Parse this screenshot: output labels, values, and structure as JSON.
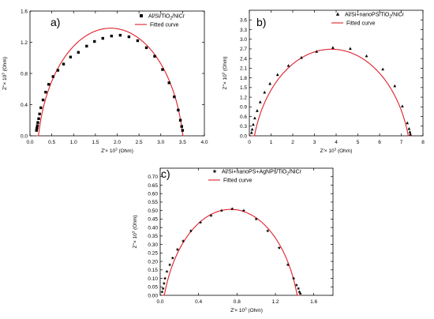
{
  "chart_data": [
    {
      "type": "scatter",
      "panel_label": "a)",
      "xlabel_main": "Z'× 10",
      "xlabel_exp": "3",
      "xlabel_unit": " (Ohm)",
      "ylabel_main": "Z''× 10",
      "ylabel_exp": "3",
      "ylabel_unit": " (Ohm)",
      "xlim": [
        0.0,
        4.0
      ],
      "ylim": [
        0.0,
        1.6
      ],
      "xticks": [
        0.0,
        0.5,
        1.0,
        1.5,
        2.0,
        2.5,
        3.0,
        3.5,
        4.0
      ],
      "xtick_labels": [
        "0.0",
        "0.5",
        "1.0",
        "1.5",
        "2.0",
        "2.5",
        "3.0",
        "3.5",
        "4.0"
      ],
      "yticks": [
        0.0,
        0.4,
        0.8,
        1.2,
        1.6
      ],
      "ytick_labels": [
        "0.0",
        "0.4",
        "0.8",
        "1.2",
        "1.6"
      ],
      "legend_position": "top-right",
      "marker": "square",
      "series": [
        {
          "name": "Al/Si/TiO",
          "name_sub": "2",
          "name_tail": "/NiCr",
          "kind": "markers",
          "x": [
            0.15,
            0.16,
            0.17,
            0.18,
            0.2,
            0.22,
            0.25,
            0.3,
            0.36,
            0.43,
            0.53,
            0.64,
            0.77,
            0.93,
            1.11,
            1.3,
            1.48,
            1.67,
            1.87,
            2.07,
            2.27,
            2.47,
            2.67,
            2.86,
            3.04,
            3.19,
            3.31,
            3.4,
            3.45,
            3.48,
            3.5
          ],
          "y": [
            0.07,
            0.1,
            0.13,
            0.17,
            0.22,
            0.28,
            0.36,
            0.46,
            0.56,
            0.66,
            0.76,
            0.84,
            0.92,
            1.01,
            1.07,
            1.15,
            1.21,
            1.25,
            1.28,
            1.29,
            1.27,
            1.22,
            1.13,
            1.02,
            0.85,
            0.68,
            0.5,
            0.33,
            0.2,
            0.12,
            0.07
          ]
        },
        {
          "name": "Fitted curve",
          "kind": "line",
          "color": "#e0202a",
          "center": 1.85,
          "radius": 1.68,
          "depression": 0.3,
          "x_from": 0.15,
          "x_to": 3.53
        }
      ]
    },
    {
      "type": "scatter",
      "panel_label": "b)",
      "xlabel_main": "Z'× 10",
      "xlabel_exp": "3",
      "xlabel_unit": " (Ohm)",
      "ylabel_main": "Z''× 10",
      "ylabel_exp": "3",
      "ylabel_unit": " (Ohm)",
      "xlim": [
        0,
        8
      ],
      "ylim": [
        0.0,
        3.9
      ],
      "xticks": [
        0,
        1,
        2,
        3,
        4,
        5,
        6,
        7,
        8
      ],
      "xtick_labels": [
        "0",
        "1",
        "2",
        "3",
        "4",
        "5",
        "6",
        "7",
        "8"
      ],
      "yticks": [
        0.0,
        0.3,
        0.6,
        0.9,
        1.2,
        1.5,
        1.8,
        2.1,
        2.4,
        2.7,
        3.0,
        3.3,
        3.6
      ],
      "ytick_labels": [
        "0.0",
        "0.3",
        "0.6",
        "0.9",
        "1.2",
        "1.5",
        "1.8",
        "2.1",
        "2.4",
        "2.7",
        "3.0",
        "3.3",
        "3.6"
      ],
      "legend_position": "top-right",
      "marker": "triangle",
      "series": [
        {
          "name": "Al/Si+nanoPS/TiO",
          "name_sub": "2",
          "name_tail": "/NiCr",
          "kind": "markers",
          "x": [
            0.1,
            0.13,
            0.18,
            0.25,
            0.36,
            0.5,
            0.7,
            0.95,
            1.3,
            1.8,
            2.4,
            3.1,
            3.85,
            4.65,
            5.4,
            6.15,
            6.7,
            7.05,
            7.28,
            7.36,
            7.4,
            7.42
          ],
          "y": [
            0.1,
            0.2,
            0.35,
            0.55,
            0.78,
            1.05,
            1.35,
            1.62,
            1.9,
            2.18,
            2.43,
            2.62,
            2.74,
            2.71,
            2.48,
            2.07,
            1.55,
            0.92,
            0.4,
            0.22,
            0.12,
            0.05
          ]
        },
        {
          "name": "Fitted curve",
          "kind": "line",
          "color": "#e0202a",
          "center": 3.78,
          "radius": 3.68,
          "depression": 0.99,
          "x_from": 0.1,
          "x_to": 7.46
        }
      ]
    },
    {
      "type": "scatter",
      "panel_label": "c)",
      "xlabel_main": "Z'× 10",
      "xlabel_exp": "3",
      "xlabel_unit": " (Ohm)",
      "ylabel_main": "Z''× 10",
      "ylabel_exp": "3",
      "ylabel_unit": " (Ohm)",
      "xlim": [
        0.0,
        1.8
      ],
      "ylim": [
        0.0,
        0.75
      ],
      "xticks": [
        0.0,
        0.4,
        0.8,
        1.2,
        1.6
      ],
      "xtick_labels": [
        "0.0",
        "0.4",
        "0.8",
        "1.2",
        "1.6"
      ],
      "yticks": [
        0.0,
        0.05,
        0.1,
        0.15,
        0.2,
        0.25,
        0.3,
        0.35,
        0.4,
        0.45,
        0.5,
        0.55,
        0.6,
        0.65,
        0.7
      ],
      "ytick_labels": [
        "0.00",
        "0.05",
        "0.10",
        "0.15",
        "0.20",
        "0.25",
        "0.30",
        "0.35",
        "0.40",
        "0.45",
        "0.50",
        "0.55",
        "0.60",
        "0.65",
        "0.70"
      ],
      "legend_position": "top-right",
      "marker": "star",
      "series": [
        {
          "name": "Al/Si+nanoPS+AgNPs/TiO",
          "name_sub": "2",
          "name_tail": "/NiCr",
          "kind": "markers",
          "x": [
            0.02,
            0.03,
            0.04,
            0.05,
            0.07,
            0.1,
            0.13,
            0.18,
            0.24,
            0.32,
            0.42,
            0.53,
            0.64,
            0.75,
            0.87,
            1.0,
            1.12,
            1.24,
            1.33,
            1.39,
            1.42,
            1.44,
            1.45,
            1.46
          ],
          "y": [
            0.02,
            0.04,
            0.07,
            0.1,
            0.14,
            0.18,
            0.22,
            0.27,
            0.32,
            0.38,
            0.43,
            0.47,
            0.5,
            0.51,
            0.5,
            0.45,
            0.38,
            0.28,
            0.18,
            0.1,
            0.06,
            0.04,
            0.02,
            0.01
          ]
        },
        {
          "name": "Fitted curve",
          "kind": "line",
          "color": "#e0202a",
          "center": 0.735,
          "radius": 0.725,
          "depression": 0.218,
          "x_from": 0.02,
          "x_to": 1.46
        }
      ]
    }
  ]
}
